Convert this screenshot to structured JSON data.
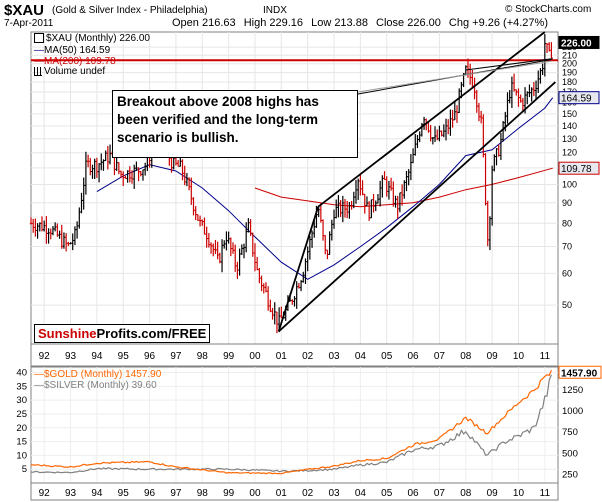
{
  "header": {
    "symbol": "$XAU",
    "name": "(Gold & Silver Index - Philadelphia)",
    "exchange": "INDX",
    "date": "7-Apr-2011",
    "open": "Open 216.63",
    "high": "High 229.16",
    "low": "Low 213.88",
    "close": "Close 226.00",
    "chg": "Chg +9.26 (+4.27%)",
    "watermark": "© StockCharts.com",
    "arrow": "▲"
  },
  "legend_top": {
    "xau": "$XAU (Monthly) 226.00",
    "ma50": "MA(50) 164.59",
    "ma200": "MA(200) 109.78",
    "volume": "Volume undef"
  },
  "annotation": "Breakout above 2008 highs has been verified and the long-term scenario is bullish.",
  "brand": {
    "part1": "Sunshine",
    "part2": "Profits.com/FREE"
  },
  "legend_bottom": {
    "gold": "$GOLD (Monthly) 1457.90",
    "silver": "$SILVER (Monthly) 39.60"
  },
  "colors": {
    "price_up": "#000000",
    "price_down": "#cc0000",
    "ma50": "#00008b",
    "ma200": "#cc0000",
    "gold": "#ff6600",
    "silver": "#808080",
    "price_tag_bg": "#000000",
    "ma_tag_bg": "#e8e8f0"
  },
  "chart_data": [
    {
      "type": "candlestick-monthly",
      "title": "$XAU (Gold & Silver Index - Philadelphia)",
      "y_scale": "log",
      "ylim": [
        40,
        240
      ],
      "y_ticks": [
        50,
        60,
        70,
        80,
        90,
        100,
        110,
        120,
        130,
        140,
        150,
        160,
        170,
        180,
        190,
        200,
        210,
        220
      ],
      "x_ticks": [
        "92",
        "93",
        "94",
        "95",
        "96",
        "97",
        "98",
        "99",
        "00",
        "01",
        "02",
        "03",
        "04",
        "05",
        "06",
        "07",
        "08",
        "09",
        "10",
        "11"
      ],
      "x_range": [
        1991.5,
        2011.5
      ],
      "price_path": [
        [
          1991.5,
          80
        ],
        [
          1992.2,
          78
        ],
        [
          1992.9,
          70
        ],
        [
          1993.2,
          75
        ],
        [
          1993.6,
          112
        ],
        [
          1994.0,
          112
        ],
        [
          1994.5,
          118
        ],
        [
          1994.9,
          106
        ],
        [
          1995.5,
          108
        ],
        [
          1995.9,
          112
        ],
        [
          1996.2,
          132
        ],
        [
          1996.6,
          122
        ],
        [
          1996.9,
          112
        ],
        [
          1997.2,
          110
        ],
        [
          1997.6,
          92
        ],
        [
          1997.9,
          80
        ],
        [
          1998.2,
          75
        ],
        [
          1998.6,
          64
        ],
        [
          1998.9,
          75
        ],
        [
          1999.3,
          62
        ],
        [
          1999.75,
          78
        ],
        [
          2000.1,
          60
        ],
        [
          2000.6,
          50
        ],
        [
          2000.9,
          45
        ],
        [
          2001.3,
          50
        ],
        [
          2001.8,
          60
        ],
        [
          2002.4,
          88
        ],
        [
          2002.7,
          65
        ],
        [
          2003.0,
          86
        ],
        [
          2003.6,
          88
        ],
        [
          2003.9,
          105
        ],
        [
          2004.3,
          85
        ],
        [
          2004.9,
          102
        ],
        [
          2005.4,
          88
        ],
        [
          2005.9,
          110
        ],
        [
          2006.4,
          150
        ],
        [
          2006.8,
          128
        ],
        [
          2007.2,
          135
        ],
        [
          2007.6,
          150
        ],
        [
          2008.0,
          192
        ],
        [
          2008.3,
          180
        ],
        [
          2008.6,
          140
        ],
        [
          2008.85,
          70
        ],
        [
          2009.0,
          110
        ],
        [
          2009.3,
          125
        ],
        [
          2009.7,
          175
        ],
        [
          2010.1,
          160
        ],
        [
          2010.6,
          175
        ],
        [
          2010.9,
          195
        ],
        [
          2011.0,
          225
        ],
        [
          2011.2,
          205
        ],
        [
          2011.3,
          226
        ]
      ],
      "ma50_path": [
        [
          1994.0,
          96
        ],
        [
          1995.0,
          105
        ],
        [
          1996.0,
          112
        ],
        [
          1997.0,
          108
        ],
        [
          1998.0,
          98
        ],
        [
          1999.0,
          86
        ],
        [
          2000.0,
          74
        ],
        [
          2001.0,
          64
        ],
        [
          2002.0,
          58
        ],
        [
          2003.0,
          63
        ],
        [
          2004.0,
          70
        ],
        [
          2005.0,
          78
        ],
        [
          2006.0,
          88
        ],
        [
          2007.0,
          100
        ],
        [
          2008.0,
          118
        ],
        [
          2009.0,
          122
        ],
        [
          2010.0,
          138
        ],
        [
          2011.0,
          155
        ],
        [
          2011.3,
          164.59
        ]
      ],
      "ma200_path": [
        [
          2000.0,
          98
        ],
        [
          2001.0,
          93
        ],
        [
          2002.0,
          91
        ],
        [
          2003.0,
          89
        ],
        [
          2004.0,
          88
        ],
        [
          2005.0,
          89
        ],
        [
          2006.0,
          90
        ],
        [
          2007.0,
          93
        ],
        [
          2008.0,
          97
        ],
        [
          2009.0,
          100
        ],
        [
          2010.0,
          104
        ],
        [
          2011.3,
          109.78
        ]
      ],
      "horizontal_lines": [
        204
      ],
      "trend_lines": [
        [
          [
            2000.9,
            43
          ],
          [
            2011.4,
            180
          ]
        ],
        [
          [
            2002.4,
            88
          ],
          [
            2011.0,
            240
          ]
        ],
        [
          [
            2002.4,
            88
          ],
          [
            2000.9,
            43
          ]
        ],
        [
          [
            2008.0,
            193
          ],
          [
            2011.3,
            206
          ]
        ]
      ],
      "value_tags": [
        "226.00",
        "164.59",
        "109.78"
      ]
    },
    {
      "type": "line",
      "x_ticks": [
        "92",
        "93",
        "94",
        "95",
        "96",
        "97",
        "98",
        "99",
        "00",
        "01",
        "02",
        "03",
        "04",
        "05",
        "06",
        "07",
        "08",
        "09",
        "10",
        "11"
      ],
      "left_axis": {
        "ticks": [
          5,
          10,
          15,
          20,
          25,
          30,
          35,
          40
        ],
        "ylim": [
          0,
          42
        ]
      },
      "right_axis": {
        "ticks": [
          250,
          500,
          750,
          1000,
          1250
        ],
        "ylim": [
          150,
          1520
        ]
      },
      "series": [
        {
          "name": "$GOLD (Monthly)",
          "axis": "right",
          "points": [
            [
              1991.5,
              365
            ],
            [
              1993.0,
              340
            ],
            [
              1994.0,
              385
            ],
            [
              1996.0,
              400
            ],
            [
              1997.0,
              340
            ],
            [
              1999.0,
              270
            ],
            [
              2001.0,
              265
            ],
            [
              2002.0,
              310
            ],
            [
              2003.0,
              350
            ],
            [
              2004.0,
              415
            ],
            [
              2005.0,
              440
            ],
            [
              2006.0,
              600
            ],
            [
              2007.0,
              670
            ],
            [
              2008.0,
              920
            ],
            [
              2008.8,
              740
            ],
            [
              2009.5,
              950
            ],
            [
              2010.0,
              1100
            ],
            [
              2010.6,
              1250
            ],
            [
              2011.0,
              1400
            ],
            [
              2011.3,
              1457.9
            ]
          ]
        },
        {
          "name": "$SILVER (Monthly)",
          "axis": "left",
          "points": [
            [
              1991.5,
              4.0
            ],
            [
              1993.0,
              3.8
            ],
            [
              1994.0,
              5.2
            ],
            [
              1996.0,
              5.0
            ],
            [
              1997.0,
              5.0
            ],
            [
              1999.0,
              5.0
            ],
            [
              2001.0,
              4.3
            ],
            [
              2002.0,
              4.5
            ],
            [
              2003.0,
              5.0
            ],
            [
              2004.0,
              6.5
            ],
            [
              2005.0,
              7.5
            ],
            [
              2006.0,
              12.0
            ],
            [
              2007.0,
              13.5
            ],
            [
              2008.0,
              19.0
            ],
            [
              2008.8,
              10.0
            ],
            [
              2009.5,
              15.0
            ],
            [
              2010.0,
              17.0
            ],
            [
              2010.6,
              20.0
            ],
            [
              2011.0,
              30.0
            ],
            [
              2011.3,
              39.6
            ]
          ]
        }
      ],
      "value_tag": "1457.90"
    }
  ]
}
